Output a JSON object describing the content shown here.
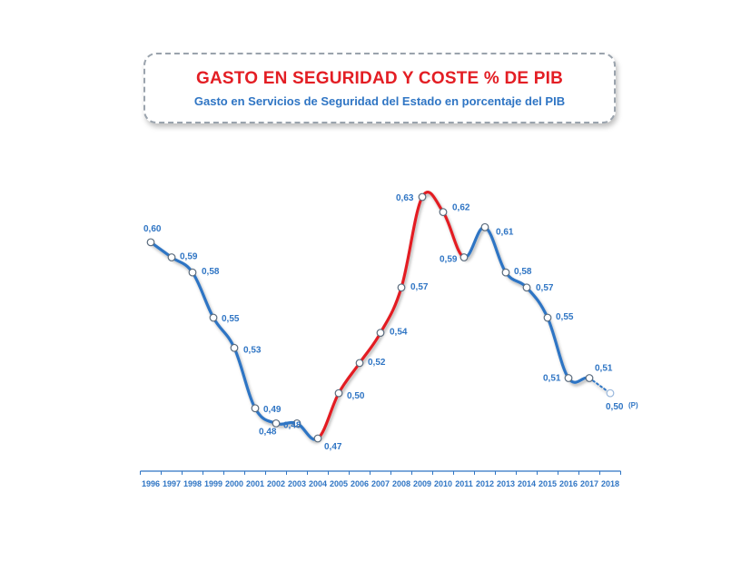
{
  "chart_data": {
    "type": "line",
    "title": "GASTO EN SEGURIDAD Y COSTE % DE PIB",
    "subtitle": "Gasto en Servicios de Seguridad del Estado en porcentaje del PIB",
    "categories": [
      "1996",
      "1997",
      "1998",
      "1999",
      "2000",
      "2001",
      "2002",
      "2003",
      "2004",
      "2005",
      "2006",
      "2007",
      "2008",
      "2009",
      "2010",
      "2011",
      "2012",
      "2013",
      "2014",
      "2015",
      "2016",
      "2017",
      "2018"
    ],
    "values": [
      0.6,
      0.59,
      0.58,
      0.55,
      0.53,
      0.49,
      0.48,
      0.48,
      0.47,
      0.5,
      0.52,
      0.54,
      0.57,
      0.63,
      0.62,
      0.59,
      0.61,
      0.58,
      0.57,
      0.55,
      0.51,
      0.51,
      0.5
    ],
    "value_labels": [
      "0,60",
      "0,59",
      "0,58",
      "0,55",
      "0,53",
      "0,49",
      "0,48",
      "0,48",
      "0,47",
      "0,50",
      "0,52",
      "0,54",
      "0,57",
      "0,63",
      "0,62",
      "0,59",
      "0,61",
      "0,58",
      "0,57",
      "0,55",
      "0,51",
      "0,51",
      "0,50"
    ],
    "projection_marker": "(P)",
    "projected_category": "2018",
    "highlight_range": [
      "2004",
      "2011"
    ],
    "colors": {
      "main": "#2f75c4",
      "highlight": "#e31e24",
      "title": "#e31e24",
      "subtitle": "#2f75c4"
    },
    "xlabel": "",
    "ylabel": "",
    "grid": false,
    "legend": "none"
  }
}
